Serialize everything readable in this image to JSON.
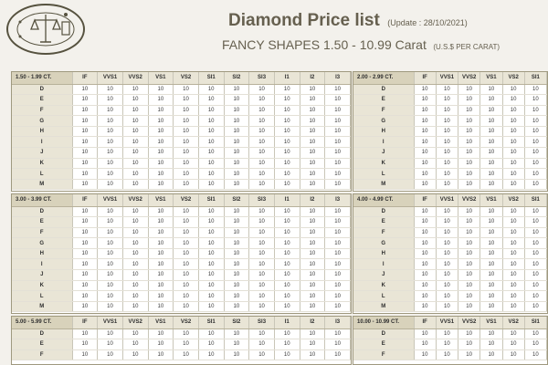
{
  "header": {
    "title": "Diamond Price list",
    "update": "(Update : 28/10/2021)",
    "subtitle": "FANCY SHAPES 1.50 - 10.99 Carat",
    "unit": "(U.S.$ PER CARAT)"
  },
  "colors": [
    "D",
    "E",
    "F",
    "G",
    "H",
    "I",
    "J",
    "K",
    "L",
    "M"
  ],
  "panels": [
    {
      "range": "1.50 - 1.99 CT.",
      "clarities": [
        "IF",
        "VVS1",
        "VVS2",
        "VS1",
        "VS2",
        "SI1",
        "SI2",
        "SI3",
        "I1",
        "I2",
        "I3"
      ],
      "rows": [
        [
          "D",
          [
            "10",
            "10",
            "10",
            "10",
            "10",
            "10",
            "10",
            "10",
            "10",
            "10",
            "10"
          ]
        ],
        [
          "E",
          [
            "10",
            "10",
            "10",
            "10",
            "10",
            "10",
            "10",
            "10",
            "10",
            "10",
            "10"
          ]
        ],
        [
          "F",
          [
            "10",
            "10",
            "10",
            "10",
            "10",
            "10",
            "10",
            "10",
            "10",
            "10",
            "10"
          ]
        ],
        [
          "G",
          [
            "10",
            "10",
            "10",
            "10",
            "10",
            "10",
            "10",
            "10",
            "10",
            "10",
            "10"
          ]
        ],
        [
          "H",
          [
            "10",
            "10",
            "10",
            "10",
            "10",
            "10",
            "10",
            "10",
            "10",
            "10",
            "10"
          ]
        ],
        [
          "I",
          [
            "10",
            "10",
            "10",
            "10",
            "10",
            "10",
            "10",
            "10",
            "10",
            "10",
            "10"
          ]
        ],
        [
          "J",
          [
            "10",
            "10",
            "10",
            "10",
            "10",
            "10",
            "10",
            "10",
            "10",
            "10",
            "10"
          ]
        ],
        [
          "K",
          [
            "10",
            "10",
            "10",
            "10",
            "10",
            "10",
            "10",
            "10",
            "10",
            "10",
            "10"
          ]
        ],
        [
          "L",
          [
            "10",
            "10",
            "10",
            "10",
            "10",
            "10",
            "10",
            "10",
            "10",
            "10",
            "10"
          ]
        ],
        [
          "M",
          [
            "10",
            "10",
            "10",
            "10",
            "10",
            "10",
            "10",
            "10",
            "10",
            "10",
            "10"
          ]
        ]
      ]
    },
    {
      "range": "2.00 - 2.99 CT.",
      "clarities": [
        "IF",
        "VVS1",
        "VVS2",
        "VS1",
        "VS2",
        "SI1"
      ],
      "rows": [
        [
          "D",
          [
            "10",
            "10",
            "10",
            "10",
            "10",
            "10"
          ]
        ],
        [
          "E",
          [
            "10",
            "10",
            "10",
            "10",
            "10",
            "10"
          ]
        ],
        [
          "F",
          [
            "10",
            "10",
            "10",
            "10",
            "10",
            "10"
          ]
        ],
        [
          "G",
          [
            "10",
            "10",
            "10",
            "10",
            "10",
            "10"
          ]
        ],
        [
          "H",
          [
            "10",
            "10",
            "10",
            "10",
            "10",
            "10"
          ]
        ],
        [
          "I",
          [
            "10",
            "10",
            "10",
            "10",
            "10",
            "10"
          ]
        ],
        [
          "J",
          [
            "10",
            "10",
            "10",
            "10",
            "10",
            "10"
          ]
        ],
        [
          "K",
          [
            "10",
            "10",
            "10",
            "10",
            "10",
            "10"
          ]
        ],
        [
          "L",
          [
            "10",
            "10",
            "10",
            "10",
            "10",
            "10"
          ]
        ],
        [
          "M",
          [
            "10",
            "10",
            "10",
            "10",
            "10",
            "10"
          ]
        ]
      ]
    },
    {
      "range": "3.00 - 3.99 CT.",
      "clarities": [
        "IF",
        "VVS1",
        "VVS2",
        "VS1",
        "VS2",
        "SI1",
        "SI2",
        "SI3",
        "I1",
        "I2",
        "I3"
      ],
      "rows": [
        [
          "D",
          [
            "10",
            "10",
            "10",
            "10",
            "10",
            "10",
            "10",
            "10",
            "10",
            "10",
            "10"
          ]
        ],
        [
          "E",
          [
            "10",
            "10",
            "10",
            "10",
            "10",
            "10",
            "10",
            "10",
            "10",
            "10",
            "10"
          ]
        ],
        [
          "F",
          [
            "10",
            "10",
            "10",
            "10",
            "10",
            "10",
            "10",
            "10",
            "10",
            "10",
            "10"
          ]
        ],
        [
          "G",
          [
            "10",
            "10",
            "10",
            "10",
            "10",
            "10",
            "10",
            "10",
            "10",
            "10",
            "10"
          ]
        ],
        [
          "H",
          [
            "10",
            "10",
            "10",
            "10",
            "10",
            "10",
            "10",
            "10",
            "10",
            "10",
            "10"
          ]
        ],
        [
          "I",
          [
            "10",
            "10",
            "10",
            "10",
            "10",
            "10",
            "10",
            "10",
            "10",
            "10",
            "10"
          ]
        ],
        [
          "J",
          [
            "10",
            "10",
            "10",
            "10",
            "10",
            "10",
            "10",
            "10",
            "10",
            "10",
            "10"
          ]
        ],
        [
          "K",
          [
            "10",
            "10",
            "10",
            "10",
            "10",
            "10",
            "10",
            "10",
            "10",
            "10",
            "10"
          ]
        ],
        [
          "L",
          [
            "10",
            "10",
            "10",
            "10",
            "10",
            "10",
            "10",
            "10",
            "10",
            "10",
            "10"
          ]
        ],
        [
          "M",
          [
            "10",
            "10",
            "10",
            "10",
            "10",
            "10",
            "10",
            "10",
            "10",
            "10",
            "10"
          ]
        ]
      ]
    },
    {
      "range": "4.00 - 4.99 CT.",
      "clarities": [
        "IF",
        "VVS1",
        "VVS2",
        "VS1",
        "VS2",
        "SI1"
      ],
      "rows": [
        [
          "D",
          [
            "10",
            "10",
            "10",
            "10",
            "10",
            "10"
          ]
        ],
        [
          "E",
          [
            "10",
            "10",
            "10",
            "10",
            "10",
            "10"
          ]
        ],
        [
          "F",
          [
            "10",
            "10",
            "10",
            "10",
            "10",
            "10"
          ]
        ],
        [
          "G",
          [
            "10",
            "10",
            "10",
            "10",
            "10",
            "10"
          ]
        ],
        [
          "H",
          [
            "10",
            "10",
            "10",
            "10",
            "10",
            "10"
          ]
        ],
        [
          "I",
          [
            "10",
            "10",
            "10",
            "10",
            "10",
            "10"
          ]
        ],
        [
          "J",
          [
            "10",
            "10",
            "10",
            "10",
            "10",
            "10"
          ]
        ],
        [
          "K",
          [
            "10",
            "10",
            "10",
            "10",
            "10",
            "10"
          ]
        ],
        [
          "L",
          [
            "10",
            "10",
            "10",
            "10",
            "10",
            "10"
          ]
        ],
        [
          "M",
          [
            "10",
            "10",
            "10",
            "10",
            "10",
            "10"
          ]
        ]
      ]
    },
    {
      "range": "5.00 - 5.99 CT.",
      "clarities": [
        "IF",
        "VVS1",
        "VVS2",
        "VS1",
        "VS2",
        "SI1",
        "SI2",
        "SI3",
        "I1",
        "I2",
        "I3"
      ],
      "rows": [
        [
          "D",
          [
            "10",
            "10",
            "10",
            "10",
            "10",
            "10",
            "10",
            "10",
            "10",
            "10",
            "10"
          ]
        ],
        [
          "E",
          [
            "10",
            "10",
            "10",
            "10",
            "10",
            "10",
            "10",
            "10",
            "10",
            "10",
            "10"
          ]
        ],
        [
          "F",
          [
            "10",
            "10",
            "10",
            "10",
            "10",
            "10",
            "10",
            "10",
            "10",
            "10",
            "10"
          ]
        ]
      ]
    },
    {
      "range": "10.00 - 10.99 CT.",
      "clarities": [
        "IF",
        "VVS1",
        "VVS2",
        "VS1",
        "VS2",
        "SI1"
      ],
      "rows": [
        [
          "D",
          [
            "10",
            "10",
            "10",
            "10",
            "10",
            "10"
          ]
        ],
        [
          "E",
          [
            "10",
            "10",
            "10",
            "10",
            "10",
            "10"
          ]
        ],
        [
          "F",
          [
            "10",
            "10",
            "10",
            "10",
            "10",
            "10"
          ]
        ]
      ]
    }
  ]
}
